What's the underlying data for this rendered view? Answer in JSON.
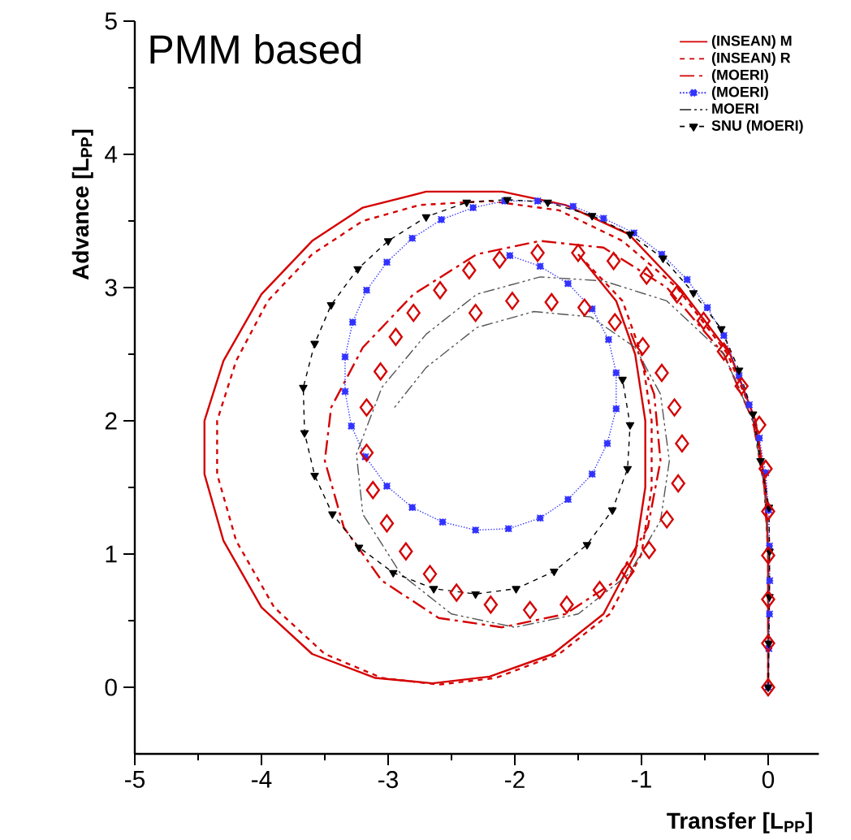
{
  "chart_data": {
    "type": "line",
    "xlabel": "Transfer [L$_{PP}$]",
    "ylabel": "Advance [L$_{PP}$]",
    "annotations": [
      "PMM based"
    ],
    "xlim": [
      -5,
      0.4
    ],
    "ylim": [
      -0.5,
      5
    ],
    "xticks": [
      -5,
      -4,
      -3,
      -2,
      -1,
      0
    ],
    "yticks": [
      0,
      1,
      2,
      3,
      4,
      5
    ],
    "legend": "top right",
    "marker": "none",
    "series": [
      {
        "name": "(INSEAN) M",
        "color": "#d40000",
        "line_style": "solid",
        "x": [
          0,
          0,
          -0.02,
          -0.1,
          -0.3,
          -0.7,
          -1.1,
          -1.6,
          -2.1,
          -2.7,
          -3.2,
          -3.6,
          -4.0,
          -4.3,
          -4.45,
          -4.45,
          -4.3,
          -4.0,
          -3.6,
          -3.1,
          -2.65,
          -2.2,
          -1.7,
          -1.3,
          -1.05,
          -0.97,
          -0.97,
          -1.05,
          -1.2,
          -1.5
        ],
        "values": [
          0,
          1,
          1.5,
          2.0,
          2.5,
          3.0,
          3.4,
          3.62,
          3.72,
          3.72,
          3.6,
          3.35,
          2.95,
          2.45,
          2.0,
          1.6,
          1.1,
          0.6,
          0.25,
          0.07,
          0.03,
          0.08,
          0.25,
          0.55,
          1.0,
          1.5,
          2.0,
          2.5,
          2.9,
          3.25
        ]
      },
      {
        "name": "(INSEAN) R",
        "color": "#d40000",
        "line_style": "dashed",
        "x": [
          0,
          0,
          -0.02,
          -0.1,
          -0.32,
          -0.72,
          -1.15,
          -1.65,
          -2.2,
          -2.75,
          -3.2,
          -3.6,
          -3.95,
          -4.2,
          -4.35,
          -4.35,
          -4.2,
          -3.9,
          -3.5,
          -3.05,
          -2.6,
          -2.15,
          -1.65,
          -1.25,
          -1.0,
          -0.92,
          -0.92,
          -1.0,
          -1.15,
          -1.45
        ],
        "values": [
          0,
          1,
          1.5,
          2.0,
          2.5,
          3.0,
          3.35,
          3.58,
          3.65,
          3.62,
          3.5,
          3.25,
          2.9,
          2.45,
          2.0,
          1.6,
          1.1,
          0.6,
          0.25,
          0.07,
          0.02,
          0.07,
          0.25,
          0.55,
          1.0,
          1.5,
          2.0,
          2.5,
          2.9,
          3.2
        ]
      },
      {
        "name": "(MOERI)",
        "color": "#d40000",
        "line_style": "dashdot",
        "x": [
          0,
          0,
          -0.03,
          -0.12,
          -0.35,
          -0.8,
          -1.3,
          -1.8,
          -2.3,
          -2.8,
          -3.2,
          -3.45,
          -3.5,
          -3.35,
          -3.05,
          -2.6,
          -2.1,
          -1.6,
          -1.2,
          -0.95,
          -0.85,
          -0.9,
          -1.1
        ],
        "values": [
          0,
          1,
          1.5,
          2.0,
          2.5,
          3.0,
          3.3,
          3.35,
          3.25,
          2.95,
          2.55,
          2.1,
          1.7,
          1.2,
          0.8,
          0.52,
          0.45,
          0.55,
          0.8,
          1.2,
          1.7,
          2.2,
          2.7
        ]
      },
      {
        "name": "(MOERI)",
        "color": "#3333ff",
        "line_style": "dotted",
        "marker": "square",
        "x": [
          0,
          0.005,
          0.01,
          0.012,
          0.01,
          0.004,
          -0.02,
          -0.07,
          -0.15,
          -0.23,
          -0.35,
          -0.48,
          -0.64,
          -0.84,
          -1.06,
          -1.3,
          -1.54,
          -1.82,
          -2.08,
          -2.33,
          -2.58,
          -2.81,
          -3.01,
          -3.17,
          -3.28,
          -3.34,
          -3.34,
          -3.29,
          -3.18,
          -3.01,
          -2.81,
          -2.57,
          -2.31,
          -2.05,
          -1.8,
          -1.58,
          -1.39,
          -1.27,
          -1.2,
          -1.2,
          -1.26,
          -1.39,
          -1.58,
          -1.8,
          -2.04
        ],
        "values": [
          0,
          0.29,
          0.55,
          0.8,
          1.06,
          1.33,
          1.61,
          1.87,
          2.12,
          2.34,
          2.64,
          2.85,
          3.06,
          3.25,
          3.41,
          3.52,
          3.61,
          3.65,
          3.65,
          3.6,
          3.51,
          3.37,
          3.19,
          2.98,
          2.74,
          2.48,
          2.22,
          1.96,
          1.73,
          1.51,
          1.35,
          1.24,
          1.18,
          1.19,
          1.27,
          1.41,
          1.6,
          1.83,
          2.09,
          2.36,
          2.61,
          2.84,
          3.03,
          3.16,
          3.24
        ]
      },
      {
        "name": "MOERI",
        "color": "#555555",
        "line_style": "dashdotdot",
        "x": [
          0,
          0,
          -0.03,
          -0.12,
          -0.35,
          -0.8,
          -1.3,
          -1.8,
          -2.3,
          -2.7,
          -3.05,
          -3.25,
          -3.2,
          -2.9,
          -2.5,
          -2.0,
          -1.5,
          -1.1,
          -0.85,
          -0.78,
          -0.85,
          -1.05,
          -1.4,
          -1.85,
          -2.3,
          -2.7,
          -2.95
        ],
        "values": [
          0,
          1,
          1.5,
          2.0,
          2.5,
          2.9,
          3.05,
          3.08,
          2.95,
          2.65,
          2.25,
          1.75,
          1.3,
          0.85,
          0.55,
          0.45,
          0.55,
          0.85,
          1.25,
          1.7,
          2.2,
          2.55,
          2.78,
          2.82,
          2.7,
          2.4,
          2.1
        ]
      },
      {
        "name": "SNU (MOERI)",
        "color": "#000000",
        "line_style": "dashed",
        "marker": "triangle",
        "x": [
          0,
          0.005,
          0.01,
          0.011,
          0.006,
          -0.06,
          -0.12,
          -0.23,
          -0.37,
          -0.59,
          -0.83,
          -1.09,
          -1.39,
          -1.74,
          -2.06,
          -2.38,
          -2.7,
          -3.0,
          -3.24,
          -3.45,
          -3.58,
          -3.67,
          -3.66,
          -3.58,
          -3.44,
          -3.23,
          -2.96,
          -2.64,
          -2.31,
          -1.99,
          -1.69,
          -1.43,
          -1.23,
          -1.11,
          -1.09,
          -1.15
        ],
        "values": [
          0,
          0.33,
          0.68,
          1.02,
          1.35,
          1.7,
          2.05,
          2.38,
          2.69,
          2.96,
          3.22,
          3.4,
          3.54,
          3.64,
          3.66,
          3.64,
          3.53,
          3.35,
          3.14,
          2.87,
          2.58,
          2.25,
          1.91,
          1.59,
          1.3,
          1.05,
          0.86,
          0.74,
          0.7,
          0.74,
          0.87,
          1.07,
          1.33,
          1.64,
          1.97,
          2.31
        ]
      },
      {
        "type": "scatter",
        "color": "#d40000",
        "marker": "diamond",
        "x": [
          0,
          0,
          0,
          0,
          0,
          -0.02,
          -0.07,
          -0.21,
          -0.35,
          -0.51,
          -0.72,
          -0.96,
          -1.22,
          -1.5,
          -1.82,
          -2.12,
          -2.36,
          -2.59,
          -2.8,
          -2.94,
          -3.06,
          -3.17,
          -3.17,
          -3.12,
          -3.01,
          -2.86,
          -2.67,
          -2.46,
          -2.19,
          -1.88,
          -1.59,
          -1.33,
          -1.11,
          -0.94,
          -0.8,
          -0.71,
          -0.68,
          -0.74,
          -0.84,
          -0.99,
          -1.21,
          -1.45,
          -1.71,
          -2.02,
          -2.31
        ],
        "values": [
          0,
          0.33,
          0.66,
          0.99,
          1.32,
          1.64,
          1.97,
          2.26,
          2.52,
          2.75,
          2.95,
          3.09,
          3.2,
          3.26,
          3.26,
          3.21,
          3.13,
          2.98,
          2.81,
          2.63,
          2.37,
          2.1,
          1.76,
          1.48,
          1.23,
          1.02,
          0.85,
          0.71,
          0.62,
          0.58,
          0.62,
          0.73,
          0.87,
          1.03,
          1.26,
          1.53,
          1.83,
          2.1,
          2.36,
          2.56,
          2.74,
          2.85,
          2.89,
          2.9,
          2.81
        ]
      }
    ]
  }
}
